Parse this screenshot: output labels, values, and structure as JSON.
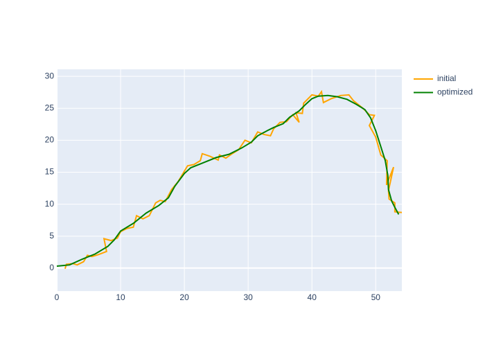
{
  "chart_data": {
    "type": "line",
    "xlim": [
      0,
      54.1
    ],
    "ylim": [
      -3.6,
      31.1
    ],
    "xticks": [
      0,
      10,
      20,
      30,
      40,
      50
    ],
    "yticks": [
      0,
      5,
      10,
      15,
      20,
      25,
      30
    ],
    "grid": true,
    "legend": "outside-right-top",
    "series": [
      {
        "name": "initial",
        "color": "#ffa500",
        "x": [
          1.3,
          1.5,
          2.5,
          3.2,
          4.2,
          4.8,
          5.5,
          6.5,
          7.8,
          7.4,
          8.5,
          9.5,
          10.0,
          11.0,
          12.0,
          12.5,
          13.5,
          14.5,
          15.5,
          16.2,
          17.0,
          18.0,
          19.0,
          20.5,
          21.5,
          22.5,
          22.8,
          24.0,
          25.3,
          25.5,
          26.5,
          27.5,
          28.5,
          29.5,
          30.5,
          31.5,
          32.5,
          33.5,
          34.0,
          35.0,
          36.0,
          37.0,
          38.0,
          37.5,
          38.5,
          38.7,
          40.0,
          41.0,
          41.5,
          41.8,
          43.0,
          44.5,
          45.8,
          46.5,
          48.0,
          49.0,
          49.8,
          49.0,
          50.0,
          50.8,
          51.8,
          51.7,
          52.8,
          52.0,
          52.1,
          53.0,
          53.0,
          54.1
        ],
        "values": [
          -0.1,
          0.6,
          0.7,
          0.5,
          1.0,
          2.0,
          1.8,
          2.1,
          2.6,
          4.6,
          4.3,
          4.7,
          5.7,
          6.2,
          6.4,
          8.2,
          7.7,
          8.2,
          10.2,
          10.6,
          10.4,
          12.3,
          13.5,
          16.0,
          16.2,
          16.8,
          17.9,
          17.5,
          16.9,
          17.7,
          17.2,
          17.9,
          18.5,
          20.0,
          19.6,
          21.3,
          20.9,
          20.7,
          21.8,
          22.8,
          22.9,
          24.0,
          22.8,
          24.3,
          24.2,
          25.8,
          27.1,
          26.9,
          27.6,
          25.9,
          26.5,
          27.0,
          27.1,
          26.2,
          25.0,
          24.0,
          23.9,
          22.3,
          20.5,
          17.7,
          16.8,
          13.0,
          15.8,
          12.1,
          10.8,
          10.2,
          8.8,
          8.7
        ]
      },
      {
        "name": "optimized",
        "color": "#008000",
        "x": [
          0,
          2,
          4,
          6,
          8,
          9,
          10,
          12,
          14,
          16,
          17.5,
          18.5,
          20,
          21,
          23,
          25,
          27,
          29,
          30.5,
          31.5,
          33,
          34,
          35.5,
          36.5,
          38,
          39,
          40,
          41,
          42.5,
          44,
          45.5,
          47,
          48.3,
          49.2,
          50,
          50.8,
          51.5,
          51.9,
          52,
          52.5,
          53,
          53.6
        ],
        "values": [
          0.3,
          0.5,
          1.4,
          2.2,
          3.4,
          4.4,
          5.8,
          7.0,
          8.6,
          9.8,
          11.0,
          12.8,
          14.8,
          15.7,
          16.5,
          17.3,
          17.8,
          18.8,
          19.7,
          20.7,
          21.5,
          22.0,
          22.6,
          23.6,
          24.6,
          25.6,
          26.5,
          26.9,
          27.0,
          26.8,
          26.4,
          25.6,
          24.8,
          23.5,
          21.5,
          19.0,
          16.8,
          14.5,
          12.3,
          10.5,
          9.5,
          8.4
        ]
      }
    ]
  }
}
